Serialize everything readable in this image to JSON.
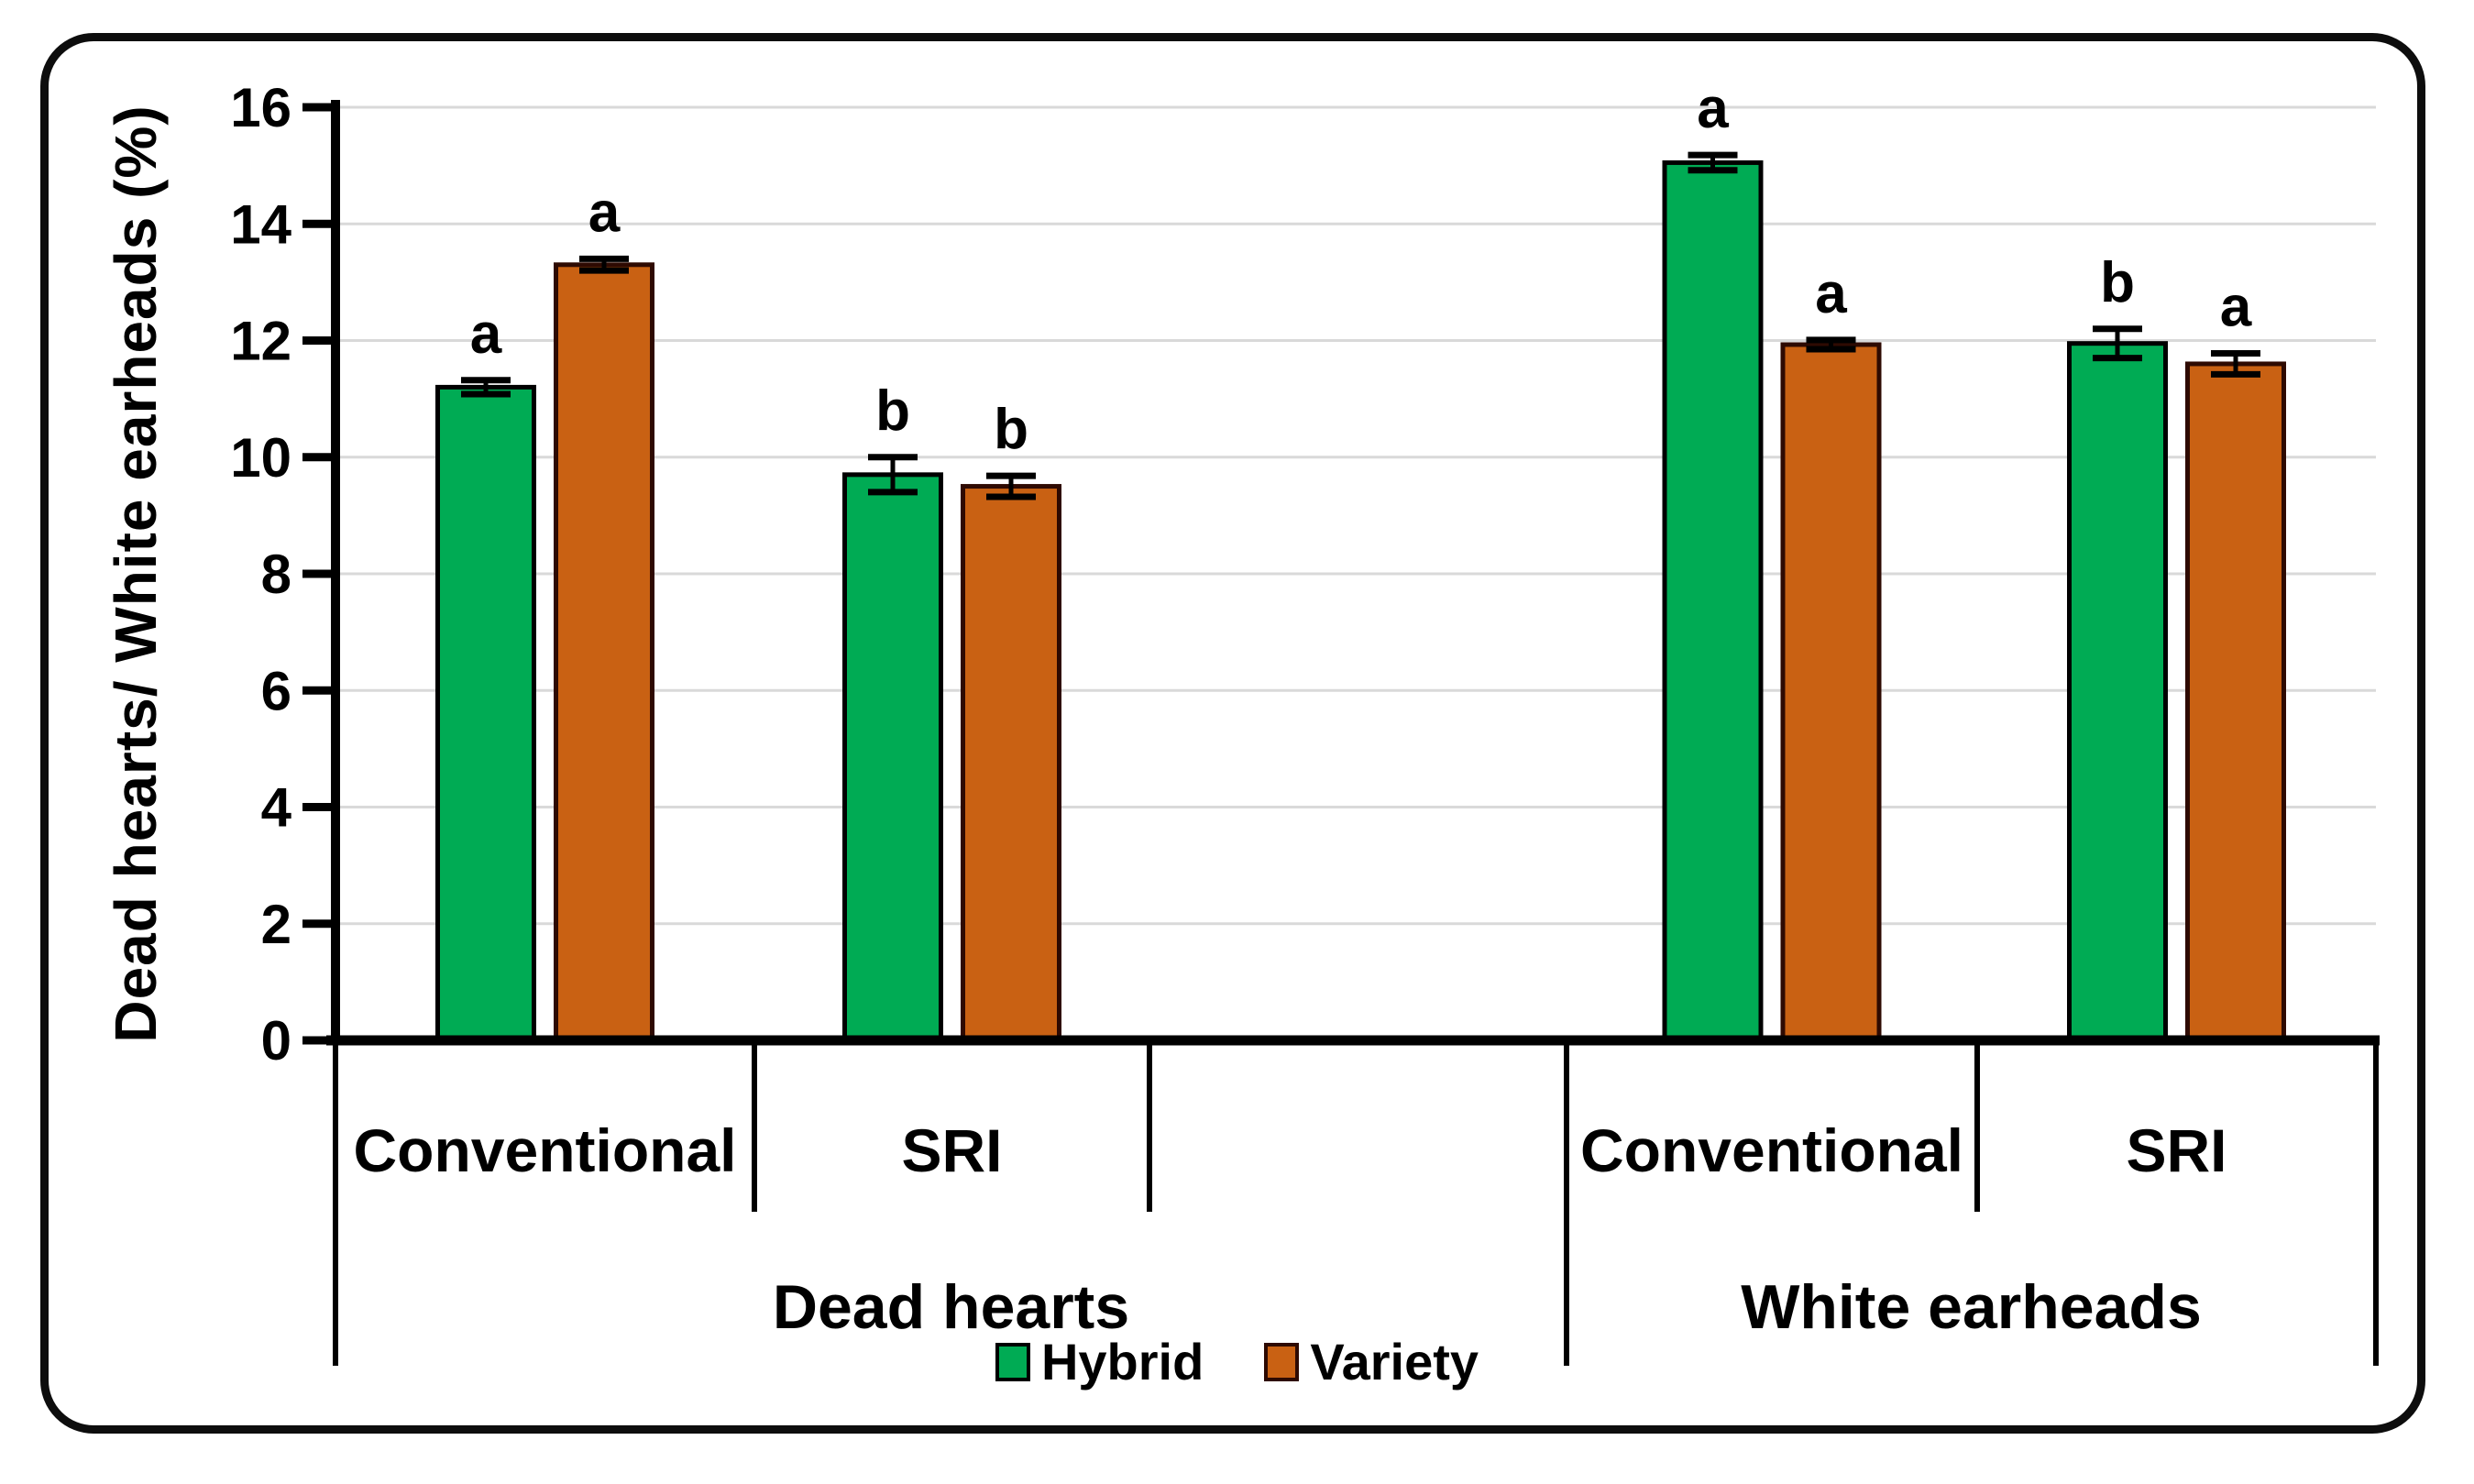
{
  "figure": {
    "background_color": "#ffffff",
    "border_color": "#0d0d0d"
  },
  "chart_data": {
    "type": "bar",
    "title": "",
    "ylabel": "Dead hearts/ White earheads (%)",
    "xlabel": "",
    "ylim": [
      0,
      16
    ],
    "ytick_step": 2,
    "ytick_labels": [
      "0",
      "2",
      "4",
      "6",
      "8",
      "10",
      "12",
      "14",
      "16"
    ],
    "grid": true,
    "gridline_color": "#d9d9d9",
    "axis_color": "#000000",
    "sections": [
      {
        "label": "Dead hearts",
        "categories": [
          "Conventional",
          "SRI"
        ]
      },
      {
        "label": "White earheads",
        "categories": [
          "Conventional",
          "SRI"
        ]
      }
    ],
    "group_order": [
      "Dead hearts / Conventional",
      "Dead hearts / SRI",
      "White earheads / Conventional",
      "White earheads / SRI"
    ],
    "series": [
      {
        "name": "Hybrid",
        "color": "#00ab54",
        "border_color": "#000000",
        "values": [
          11.2,
          9.7,
          15.05,
          11.95
        ],
        "errors": [
          0.12,
          0.3,
          0.13,
          0.25
        ],
        "letters": [
          "a",
          "b",
          "a",
          "b"
        ]
      },
      {
        "name": "Variety",
        "color": "#c96113",
        "border_color": "#2e0a02",
        "values": [
          13.3,
          9.5,
          11.93,
          11.6
        ],
        "errors": [
          0.1,
          0.18,
          0.08,
          0.18
        ],
        "letters": [
          "a",
          "b",
          "a",
          "a"
        ]
      }
    ],
    "legend": {
      "position": "bottom",
      "entries": [
        "Hybrid",
        "Variety"
      ]
    }
  }
}
